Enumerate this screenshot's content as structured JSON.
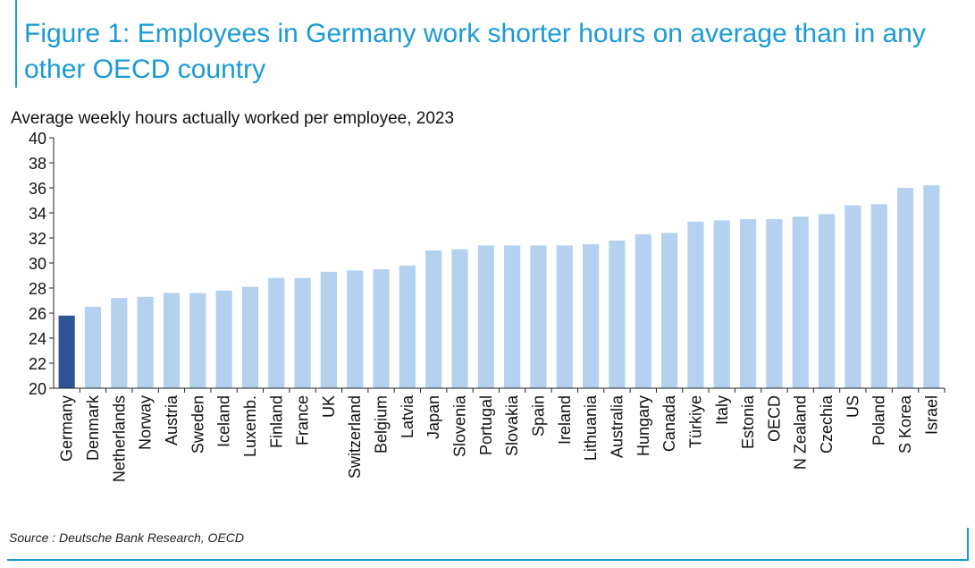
{
  "title": "Figure 1: Employees in Germany work shorter hours on average than in any other OECD country",
  "source": "Source : Deutsche Bank Research, OECD",
  "colors": {
    "accent": "#1b9ad6",
    "highlight_bar": "#2f5597",
    "bar": "#b4d1f0"
  },
  "chart_data": {
    "type": "bar",
    "title": "Average weekly hours actually worked per employee, 2023",
    "xlabel": "",
    "ylabel": "",
    "ylim": [
      20,
      40
    ],
    "yticks": [
      20,
      22,
      24,
      26,
      28,
      30,
      32,
      34,
      36,
      38,
      40
    ],
    "highlight": "Germany",
    "categories": [
      "Germany",
      "Denmark",
      "Netherlands",
      "Norway",
      "Austria",
      "Sweden",
      "Iceland",
      "Luxemb.",
      "Finland",
      "France",
      "UK",
      "Switzerland",
      "Belgium",
      "Latvia",
      "Japan",
      "Slovenia",
      "Portugal",
      "Slovakia",
      "Spain",
      "Ireland",
      "Lithuania",
      "Australia",
      "Hungary",
      "Canada",
      "Türkiye",
      "Italy",
      "Estonia",
      "OECD",
      "N Zealand",
      "Czechia",
      "US",
      "Poland",
      "S Korea",
      "Israel"
    ],
    "values": [
      25.8,
      26.5,
      27.2,
      27.3,
      27.6,
      27.6,
      27.8,
      28.1,
      28.8,
      28.8,
      29.3,
      29.4,
      29.5,
      29.8,
      31.0,
      31.1,
      31.4,
      31.4,
      31.4,
      31.4,
      31.5,
      31.8,
      32.3,
      32.4,
      33.3,
      33.4,
      33.5,
      33.5,
      33.7,
      33.9,
      34.6,
      34.7,
      36.0,
      36.2
    ]
  }
}
